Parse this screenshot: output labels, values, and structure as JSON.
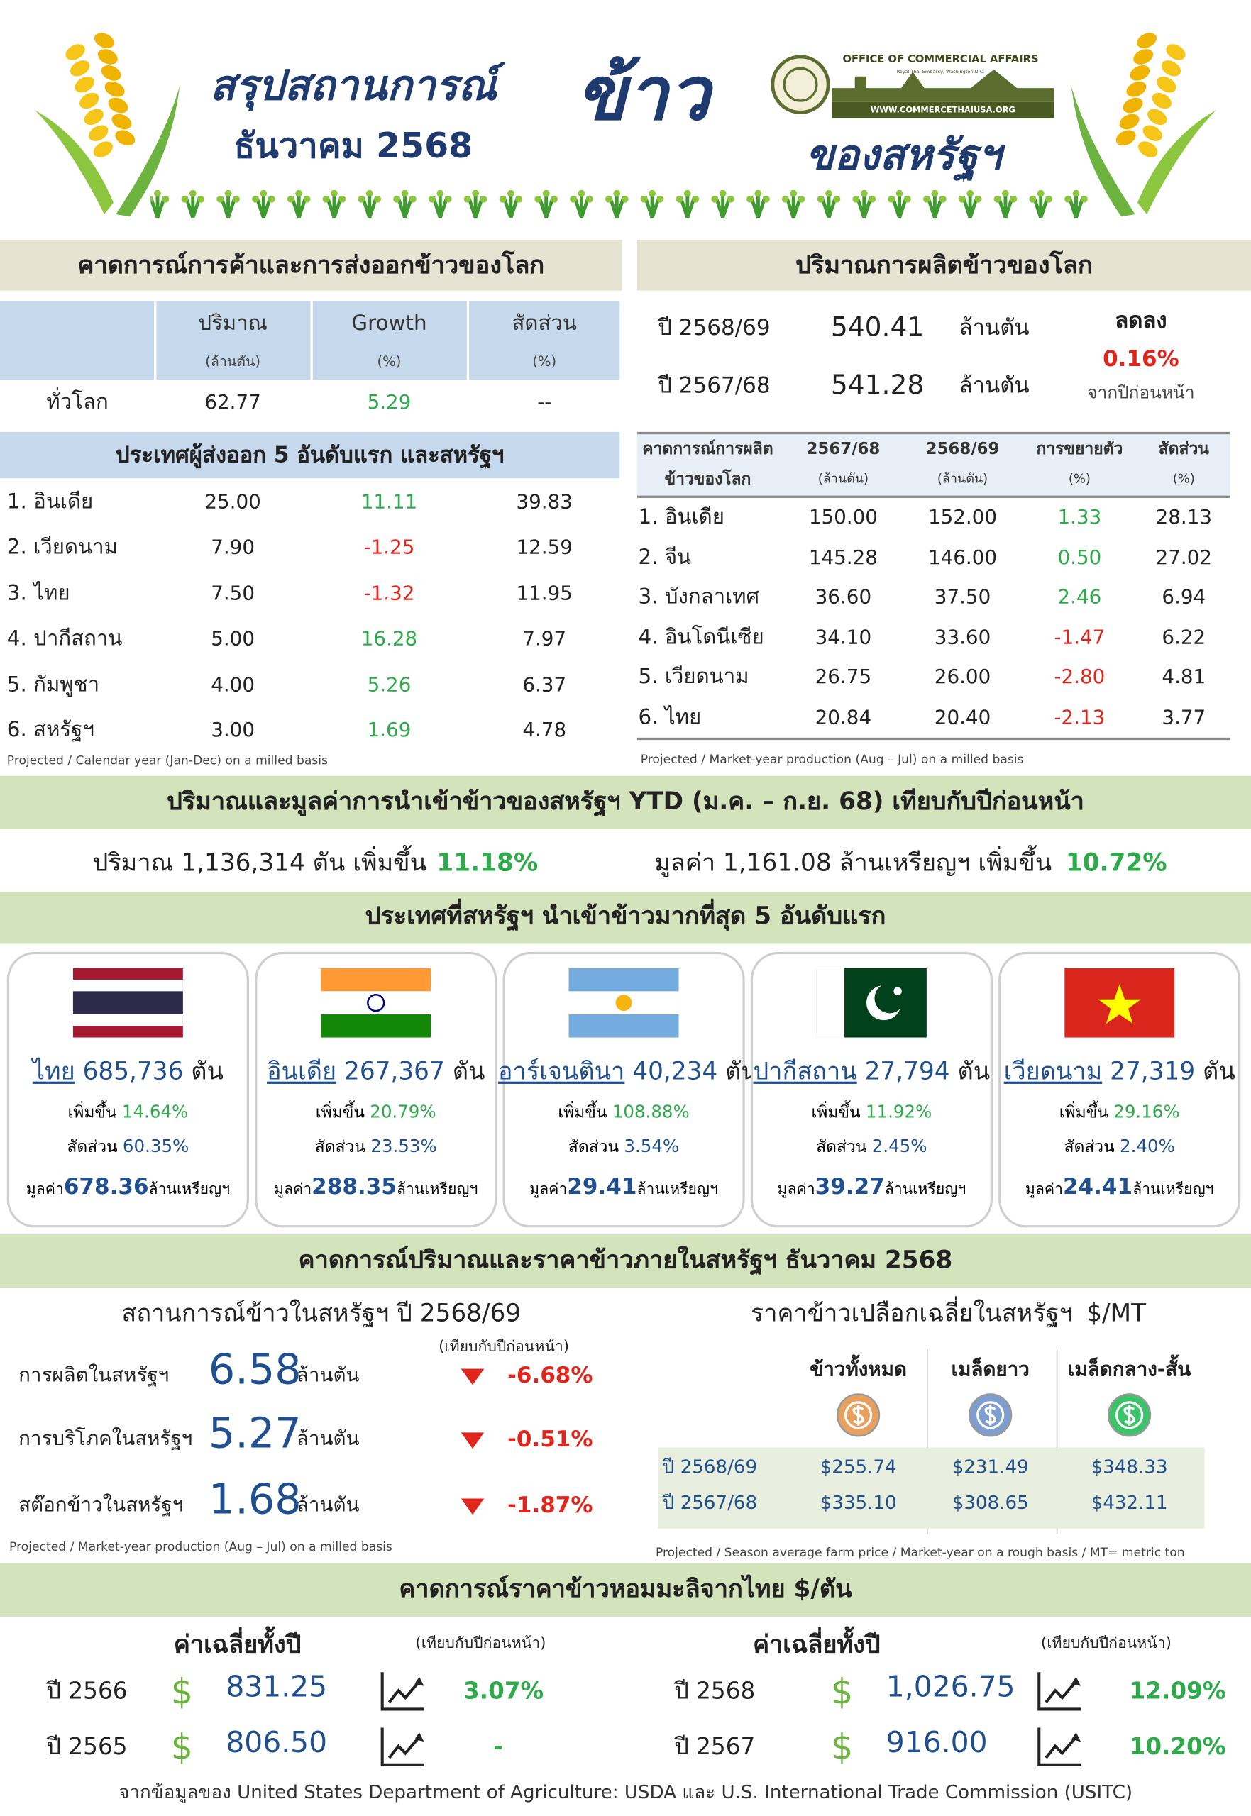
{
  "header": {
    "title_line1": "สรุปสถานการณ์",
    "title_line2": "ธันวาคม 2568",
    "title_big": "ข้าว",
    "title_sub": "ของสหรัฐฯ",
    "logo_text": "OFFICE OF COMMERCIAL AFFAIRS",
    "logo_sub": "Royal Thai Embassy, Washington D.C.",
    "logo_url": "WWW.COMMERCETHAIUSA.ORG"
  },
  "world_trade": {
    "title": "คาดการณ์การค้าและการส่งออกข้าวของโลก",
    "columns": [
      {
        "label": "ปริมาณ",
        "unit": "(ล้านตัน)"
      },
      {
        "label": "Growth",
        "unit": "(%)"
      },
      {
        "label": "สัดส่วน",
        "unit": "(%)"
      }
    ],
    "world": {
      "label": "ทั่วโลก",
      "values": [
        "62.77",
        "5.29",
        "--"
      ]
    },
    "top_title": "ประเทศผู้ส่งออก 5 อันดับแรก และสหรัฐฯ",
    "rows": [
      [
        "1. อินเดีย",
        "25.00",
        "11.11",
        "39.83"
      ],
      [
        "2. เวียดนาม",
        "7.90",
        "-1.25",
        "12.59"
      ],
      [
        "3. ไทย",
        "7.50",
        "-1.32",
        "11.95"
      ],
      [
        "4. ปากีสถาน",
        "5.00",
        "16.28",
        "7.97"
      ],
      [
        "5. กัมพูชา",
        "4.00",
        "5.26",
        "6.37"
      ],
      [
        "6. สหรัฐฯ",
        "3.00",
        "1.69",
        "4.78"
      ]
    ],
    "note": "Projected / Calendar year (Jan-Dec) on a milled basis"
  },
  "world_production": {
    "title": "ปริมาณการผลิตข้าวของโลก",
    "years": [
      {
        "year": "ปี 2568/69",
        "value": "540.41",
        "unit": "ล้านตัน"
      },
      {
        "year": "ปี 2567/68",
        "value": "541.28",
        "unit": "ล้านตัน"
      }
    ],
    "change": {
      "label": "ลดลง",
      "value": "0.16%",
      "note": "จากปีก่อนหน้า"
    },
    "columns": [
      {
        "label": "คาดการณ์การผลิต",
        "unit": "ข้าวของโลก"
      },
      {
        "label": "2567/68",
        "unit": "(ล้านตัน)"
      },
      {
        "label": "2568/69",
        "unit": "(ล้านตัน)"
      },
      {
        "label": "การขยายตัว",
        "unit": "(%)"
      },
      {
        "label": "สัดส่วน",
        "unit": "(%)"
      }
    ],
    "rows": [
      [
        "1. อินเดีย",
        "150.00",
        "152.00",
        "1.33",
        "28.13"
      ],
      [
        "2. จีน",
        "145.28",
        "146.00",
        "0.50",
        "27.02"
      ],
      [
        "3. บังกลาเทศ",
        "36.60",
        "37.50",
        "2.46",
        "6.94"
      ],
      [
        "4. อินโดนีเซีย",
        "34.10",
        "33.60",
        "-1.47",
        "6.22"
      ],
      [
        "5. เวียดนาม",
        "26.75",
        "26.00",
        "-2.80",
        "4.81"
      ],
      [
        "6. ไทย",
        "20.84",
        "20.40",
        "-2.13",
        "3.77"
      ]
    ],
    "note": "Projected / Market-year production (Aug – Jul) on a milled basis"
  },
  "us_imports": {
    "title": "ปริมาณและมูลค่าการนำเข้าข้าวของสหรัฐฯ YTD (ม.ค. – ก.ย. 68) เทียบกับปีก่อนหน้า",
    "quantity": {
      "text": "ปริมาณ 1,136,314 ตัน เพิ่มขึ้น",
      "change": "11.18%"
    },
    "value": {
      "text": "มูลค่า 1,161.08 ล้านเหรียญฯ เพิ่มขึ้น",
      "change": "10.72%"
    }
  },
  "top5": {
    "title": "ประเทศที่สหรัฐฯ นำเข้าข้าวมากที่สุด 5 อันดับแรก",
    "labels": {
      "unit": "ตัน",
      "growth": "เพิ่มขึ้น",
      "share": "สัดส่วน",
      "value": "มูลค่า",
      "value_unit": "ล้านเหรียญฯ"
    },
    "cards": [
      {
        "country": "ไทย",
        "quantity": "685,736",
        "growth": "14.64%",
        "share": "60.35%",
        "value": "678.36"
      },
      {
        "country": "อินเดีย",
        "quantity": "267,367",
        "growth": "20.79%",
        "share": "23.53%",
        "value": "288.35"
      },
      {
        "country": "อาร์เจนตินา",
        "quantity": "40,234",
        "growth": "108.88%",
        "share": "3.54%",
        "value": "29.41"
      },
      {
        "country": "ปากีสถาน",
        "quantity": "27,794",
        "growth": "11.92%",
        "share": "2.45%",
        "value": "39.27"
      },
      {
        "country": "เวียดนาม",
        "quantity": "27,319",
        "growth": "29.16%",
        "share": "2.40%",
        "value": "24.41"
      }
    ]
  },
  "us_outlook": {
    "title": "คาดการณ์ปริมาณและราคาข้าวภายในสหรัฐฯ ธันวาคม 2568",
    "situation": {
      "title": "สถานการณ์ข้าวในสหรัฐฯ ปี 2568/69",
      "compare": "(เทียบกับปีก่อนหน้า)",
      "unit": "ล้านตัน",
      "rows": [
        {
          "label": "การผลิตในสหรัฐฯ",
          "value": "6.58",
          "change": "-6.68%"
        },
        {
          "label": "การบริโภคในสหรัฐฯ",
          "value": "5.27",
          "change": "-0.51%"
        },
        {
          "label": "สต๊อกข้าวในสหรัฐฯ",
          "value": "1.68",
          "change": "-1.87%"
        }
      ],
      "note": "Projected / Market-year production (Aug – Jul) on a milled basis"
    },
    "prices": {
      "title": "ราคาข้าวเปลือกเฉลี่ยในสหรัฐฯ",
      "unit": "$/MT",
      "columns": [
        "ข้าวทั้งหมด",
        "เมล็ดยาว",
        "เมล็ดกลาง-สั้น"
      ],
      "rows": [
        [
          "ปี 2568/69",
          "$255.74",
          "$231.49",
          "$348.33"
        ],
        [
          "ปี 2567/68",
          "$335.10",
          "$308.65",
          "$432.11"
        ]
      ],
      "note": "Projected / Season average farm price / Market-year on a rough basis  / MT=  metric ton"
    }
  },
  "jasmine": {
    "title": "คาดการณ์ราคาข้าวหอมมะลิจากไทย $/ตัน",
    "blocks": [
      {
        "heading": "ค่าเฉลี่ยทั้งปี",
        "compare": "(เทียบกับปีก่อนหน้า)",
        "rows": [
          {
            "year": "ปี 2566",
            "currency": "$",
            "price": "831.25",
            "change": "3.07%"
          },
          {
            "year": "ปี 2565",
            "currency": "$",
            "price": "806.50",
            "change": "-"
          }
        ]
      },
      {
        "heading": "ค่าเฉลี่ยทั้งปี",
        "compare": "(เทียบกับปีก่อนหน้า)",
        "rows": [
          {
            "year": "ปี 2568",
            "currency": "$",
            "price": "1,026.75",
            "change": "12.09%"
          },
          {
            "year": "ปี 2567",
            "currency": "$",
            "price": "916.00",
            "change": "10.20%"
          }
        ]
      }
    ]
  },
  "footer": {
    "source": "จากข้อมูลของ United States Department of Agriculture: USDA และ U.S. International Trade Commission (USITC)"
  }
}
